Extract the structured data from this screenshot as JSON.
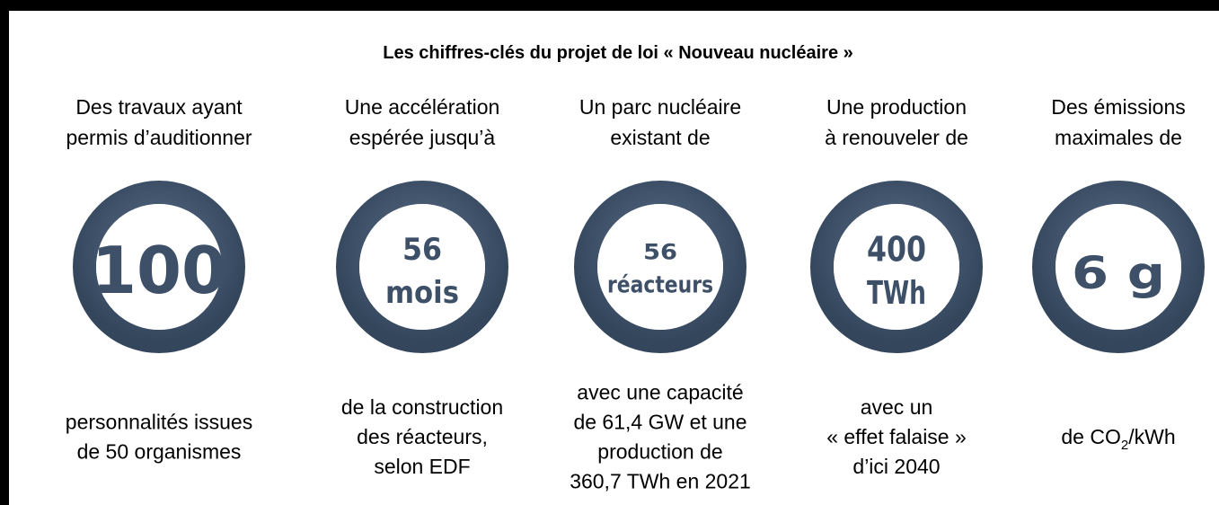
{
  "title": "Les chiffres-clés du projet de loi « Nouveau nucléaire »",
  "items": [
    {
      "top_lines": [
        "Des travaux ayant",
        "permis d’auditionner"
      ],
      "figure_lines": [
        "100"
      ],
      "bottom_lines": [
        "personnalités issues",
        "de 50 organismes"
      ]
    },
    {
      "top_lines": [
        "Une accélération",
        "espérée jusqu’à"
      ],
      "figure_lines": [
        "56",
        "mois"
      ],
      "bottom_lines": [
        "de la construction",
        "des réacteurs,",
        "selon EDF"
      ]
    },
    {
      "top_lines": [
        "Un parc nucléaire",
        "existant de"
      ],
      "figure_lines": [
        "56",
        "réacteurs"
      ],
      "bottom_lines": [
        "avec une capacité",
        "de 61,4 GW et une",
        "production de",
        "360,7 TWh en 2021"
      ]
    },
    {
      "top_lines": [
        "Une production",
        "à renouveler de"
      ],
      "figure_lines": [
        "400",
        "TWh"
      ],
      "bottom_lines": [
        "avec un",
        "« effet falaise »",
        "d’ici 2040"
      ]
    },
    {
      "top_lines": [
        "Des émissions",
        "maximales de"
      ],
      "figure_lines": [
        "6 g"
      ],
      "bottom_lines": [
        [
          "de CO",
          "2",
          "/kWh"
        ]
      ]
    }
  ]
}
